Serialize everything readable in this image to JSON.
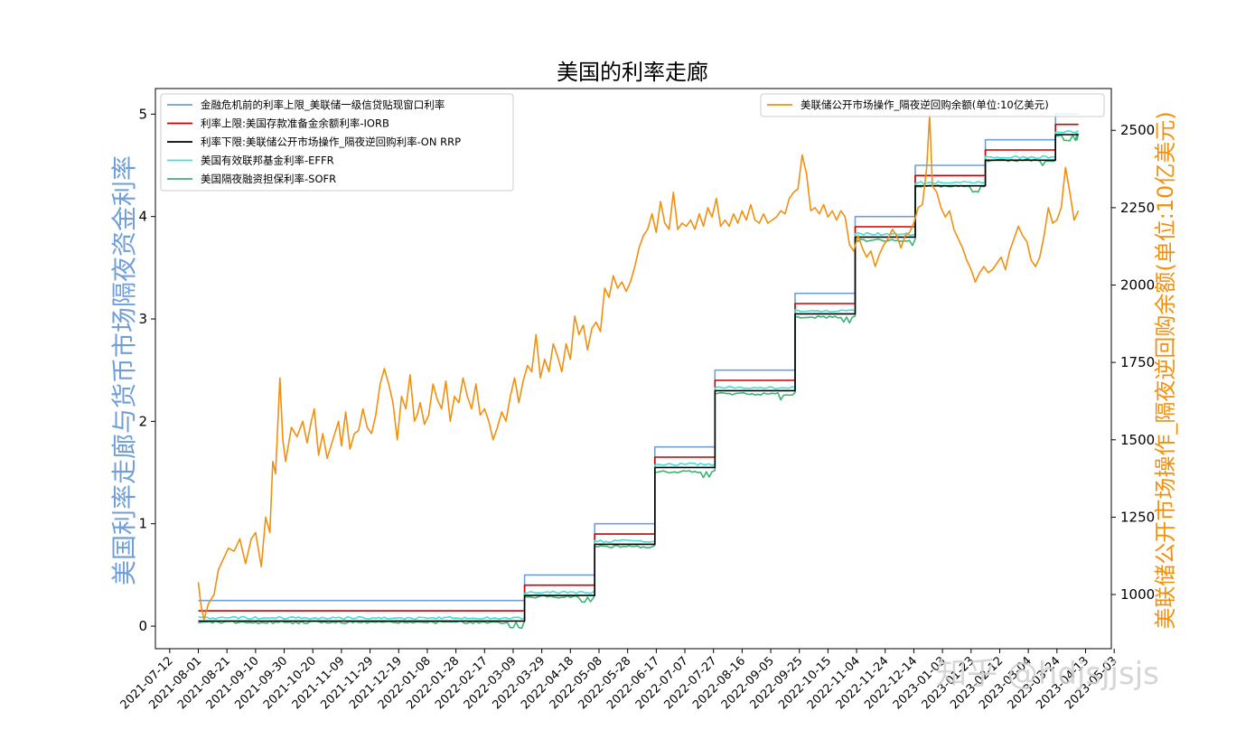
{
  "chart_data": {
    "type": "line",
    "title": "美国的利率走廊",
    "ylabel_left": "美国利率走廊与货币市场隔夜资金利率",
    "ylabel_right": "美联储公开市场操作_隔夜逆回购余额(单位:10亿美元)",
    "xlim": [
      "2021-07-02",
      "2023-05-01"
    ],
    "ylim_left": [
      -0.22,
      5.25
    ],
    "ylim_right": [
      825,
      2635
    ],
    "x_ticks": [
      "2021-07-12",
      "2021-08-01",
      "2021-08-21",
      "2021-09-10",
      "2021-09-30",
      "2021-10-20",
      "2021-11-09",
      "2021-11-29",
      "2021-12-19",
      "2022-01-08",
      "2022-01-28",
      "2022-02-17",
      "2022-03-09",
      "2022-03-29",
      "2022-04-18",
      "2022-05-08",
      "2022-05-28",
      "2022-06-17",
      "2022-07-07",
      "2022-07-27",
      "2022-08-16",
      "2022-09-05",
      "2022-09-25",
      "2022-10-15",
      "2022-11-04",
      "2022-11-24",
      "2022-12-14",
      "2023-01-03",
      "2023-01-23",
      "2023-02-12",
      "2023-03-04",
      "2023-03-24",
      "2023-04-13",
      "2023-05-03"
    ],
    "y_ticks_left": [
      0,
      1,
      2,
      3,
      4,
      5
    ],
    "y_ticks_right": [
      1000,
      1250,
      1500,
      1750,
      2000,
      2250,
      2500
    ],
    "legend_left": "upper-left",
    "legend_right": "upper-right",
    "grid": false,
    "step_dates": [
      "2021-08-01",
      "2022-03-17",
      "2022-05-05",
      "2022-06-16",
      "2022-07-28",
      "2022-09-22",
      "2022-11-03",
      "2022-12-15",
      "2023-02-02",
      "2023-03-23",
      "2023-04-07"
    ],
    "series": [
      {
        "name": "金融危机前的利率上限_美联储一级信贷贴现窗口利率",
        "color": "#6f9ed8",
        "axis": "left",
        "values": [
          0.25,
          0.5,
          1.0,
          1.75,
          2.5,
          3.25,
          4.0,
          4.5,
          4.75,
          5.0,
          5.0
        ]
      },
      {
        "name": "利率上限:美国存款准备金余额利率-IORB",
        "color": "#cc0000",
        "axis": "left",
        "values": [
          0.15,
          0.4,
          0.9,
          1.65,
          2.4,
          3.15,
          3.9,
          4.4,
          4.65,
          4.9,
          4.9
        ]
      },
      {
        "name": "利率下限:美联储公开市场操作_隔夜逆回购利率-ON RRP",
        "color": "#000000",
        "axis": "left",
        "values": [
          0.05,
          0.3,
          0.8,
          1.55,
          2.3,
          3.05,
          3.8,
          4.3,
          4.55,
          4.8,
          4.8
        ]
      },
      {
        "name": "美国有效联邦基金利率-EFFR",
        "color": "#40e0d8",
        "axis": "left",
        "values": [
          0.08,
          0.33,
          0.83,
          1.58,
          2.33,
          3.08,
          3.83,
          4.33,
          4.58,
          4.83,
          4.83
        ]
      },
      {
        "name": "美国隔夜融资担保利率-SOFR",
        "color": "#3cb371",
        "axis": "left",
        "values": [
          0.05,
          0.3,
          0.79,
          1.52,
          2.28,
          3.03,
          3.78,
          4.31,
          4.56,
          4.81,
          4.81
        ]
      },
      {
        "name": "美联储公开市场操作_隔夜逆回购余额(单位:10亿美元)",
        "color": "#f0900e",
        "axis": "right",
        "points": [
          [
            "2021-08-01",
            1040
          ],
          [
            "2021-08-03",
            960
          ],
          [
            "2021-08-05",
            920
          ],
          [
            "2021-08-08",
            970
          ],
          [
            "2021-08-12",
            1000
          ],
          [
            "2021-08-15",
            1080
          ],
          [
            "2021-08-18",
            1110
          ],
          [
            "2021-08-22",
            1150
          ],
          [
            "2021-08-26",
            1140
          ],
          [
            "2021-08-30",
            1180
          ],
          [
            "2021-09-03",
            1100
          ],
          [
            "2021-09-07",
            1180
          ],
          [
            "2021-09-10",
            1200
          ],
          [
            "2021-09-14",
            1090
          ],
          [
            "2021-09-17",
            1250
          ],
          [
            "2021-09-20",
            1200
          ],
          [
            "2021-09-22",
            1430
          ],
          [
            "2021-09-24",
            1390
          ],
          [
            "2021-09-27",
            1700
          ],
          [
            "2021-09-29",
            1500
          ],
          [
            "2021-10-01",
            1430
          ],
          [
            "2021-10-05",
            1540
          ],
          [
            "2021-10-09",
            1510
          ],
          [
            "2021-10-13",
            1560
          ],
          [
            "2021-10-16",
            1490
          ],
          [
            "2021-10-19",
            1560
          ],
          [
            "2021-10-21",
            1600
          ],
          [
            "2021-10-24",
            1450
          ],
          [
            "2021-10-27",
            1520
          ],
          [
            "2021-10-30",
            1440
          ],
          [
            "2021-11-03",
            1500
          ],
          [
            "2021-11-07",
            1560
          ],
          [
            "2021-11-09",
            1480
          ],
          [
            "2021-11-12",
            1590
          ],
          [
            "2021-11-15",
            1470
          ],
          [
            "2021-11-18",
            1520
          ],
          [
            "2021-11-21",
            1530
          ],
          [
            "2021-11-24",
            1600
          ],
          [
            "2021-11-27",
            1540
          ],
          [
            "2021-11-30",
            1520
          ],
          [
            "2021-12-03",
            1580
          ],
          [
            "2021-12-06",
            1680
          ],
          [
            "2021-12-09",
            1730
          ],
          [
            "2021-12-12",
            1680
          ],
          [
            "2021-12-15",
            1620
          ],
          [
            "2021-12-18",
            1500
          ],
          [
            "2021-12-21",
            1640
          ],
          [
            "2021-12-24",
            1600
          ],
          [
            "2021-12-27",
            1710
          ],
          [
            "2021-12-30",
            1560
          ],
          [
            "2022-01-01",
            1580
          ],
          [
            "2022-01-03",
            1620
          ],
          [
            "2022-01-06",
            1550
          ],
          [
            "2022-01-09",
            1580
          ],
          [
            "2022-01-12",
            1680
          ],
          [
            "2022-01-15",
            1630
          ],
          [
            "2022-01-18",
            1600
          ],
          [
            "2022-01-21",
            1690
          ],
          [
            "2022-01-24",
            1560
          ],
          [
            "2022-01-27",
            1640
          ],
          [
            "2022-01-30",
            1620
          ],
          [
            "2022-02-02",
            1700
          ],
          [
            "2022-02-05",
            1640
          ],
          [
            "2022-02-08",
            1600
          ],
          [
            "2022-02-11",
            1680
          ],
          [
            "2022-02-14",
            1580
          ],
          [
            "2022-02-17",
            1600
          ],
          [
            "2022-02-20",
            1560
          ],
          [
            "2022-02-23",
            1500
          ],
          [
            "2022-02-26",
            1540
          ],
          [
            "2022-03-01",
            1590
          ],
          [
            "2022-03-04",
            1560
          ],
          [
            "2022-03-07",
            1640
          ],
          [
            "2022-03-10",
            1700
          ],
          [
            "2022-03-13",
            1620
          ],
          [
            "2022-03-16",
            1690
          ],
          [
            "2022-03-19",
            1740
          ],
          [
            "2022-03-22",
            1720
          ],
          [
            "2022-03-25",
            1840
          ],
          [
            "2022-03-28",
            1700
          ],
          [
            "2022-03-31",
            1760
          ],
          [
            "2022-04-03",
            1720
          ],
          [
            "2022-04-06",
            1810
          ],
          [
            "2022-04-09",
            1770
          ],
          [
            "2022-04-12",
            1720
          ],
          [
            "2022-04-15",
            1810
          ],
          [
            "2022-04-18",
            1760
          ],
          [
            "2022-04-21",
            1900
          ],
          [
            "2022-04-24",
            1840
          ],
          [
            "2022-04-27",
            1870
          ],
          [
            "2022-04-30",
            1790
          ],
          [
            "2022-05-03",
            1860
          ],
          [
            "2022-05-06",
            1880
          ],
          [
            "2022-05-09",
            1850
          ],
          [
            "2022-05-12",
            1990
          ],
          [
            "2022-05-15",
            1960
          ],
          [
            "2022-05-18",
            2030
          ],
          [
            "2022-05-21",
            1990
          ],
          [
            "2022-05-24",
            2010
          ],
          [
            "2022-05-27",
            1980
          ],
          [
            "2022-05-30",
            2010
          ],
          [
            "2022-06-02",
            2060
          ],
          [
            "2022-06-05",
            2120
          ],
          [
            "2022-06-08",
            2160
          ],
          [
            "2022-06-11",
            2180
          ],
          [
            "2022-06-14",
            2230
          ],
          [
            "2022-06-17",
            2170
          ],
          [
            "2022-06-20",
            2270
          ],
          [
            "2022-06-23",
            2200
          ],
          [
            "2022-06-26",
            2180
          ],
          [
            "2022-06-29",
            2300
          ],
          [
            "2022-07-02",
            2180
          ],
          [
            "2022-07-05",
            2200
          ],
          [
            "2022-07-08",
            2190
          ],
          [
            "2022-07-11",
            2210
          ],
          [
            "2022-07-14",
            2180
          ],
          [
            "2022-07-17",
            2230
          ],
          [
            "2022-07-20",
            2190
          ],
          [
            "2022-07-23",
            2250
          ],
          [
            "2022-07-26",
            2220
          ],
          [
            "2022-07-29",
            2280
          ],
          [
            "2022-08-01",
            2190
          ],
          [
            "2022-08-04",
            2210
          ],
          [
            "2022-08-07",
            2190
          ],
          [
            "2022-08-10",
            2230
          ],
          [
            "2022-08-13",
            2200
          ],
          [
            "2022-08-16",
            2240
          ],
          [
            "2022-08-19",
            2210
          ],
          [
            "2022-08-22",
            2260
          ],
          [
            "2022-08-25",
            2210
          ],
          [
            "2022-08-28",
            2200
          ],
          [
            "2022-08-31",
            2230
          ],
          [
            "2022-09-03",
            2200
          ],
          [
            "2022-09-06",
            2210
          ],
          [
            "2022-09-09",
            2220
          ],
          [
            "2022-09-12",
            2240
          ],
          [
            "2022-09-15",
            2230
          ],
          [
            "2022-09-18",
            2280
          ],
          [
            "2022-09-21",
            2300
          ],
          [
            "2022-09-24",
            2310
          ],
          [
            "2022-09-27",
            2420
          ],
          [
            "2022-09-30",
            2360
          ],
          [
            "2022-10-03",
            2240
          ],
          [
            "2022-10-06",
            2250
          ],
          [
            "2022-10-09",
            2230
          ],
          [
            "2022-10-12",
            2260
          ],
          [
            "2022-10-15",
            2220
          ],
          [
            "2022-10-18",
            2240
          ],
          [
            "2022-10-21",
            2210
          ],
          [
            "2022-10-24",
            2240
          ],
          [
            "2022-10-27",
            2220
          ],
          [
            "2022-10-30",
            2130
          ],
          [
            "2022-11-02",
            2110
          ],
          [
            "2022-11-05",
            2160
          ],
          [
            "2022-11-08",
            2120
          ],
          [
            "2022-11-11",
            2090
          ],
          [
            "2022-11-14",
            2110
          ],
          [
            "2022-11-17",
            2060
          ],
          [
            "2022-11-20",
            2100
          ],
          [
            "2022-11-23",
            2130
          ],
          [
            "2022-11-26",
            2150
          ],
          [
            "2022-11-29",
            2180
          ],
          [
            "2022-12-02",
            2160
          ],
          [
            "2022-12-05",
            2120
          ],
          [
            "2022-12-08",
            2160
          ],
          [
            "2022-12-11",
            2170
          ],
          [
            "2022-12-14",
            2200
          ],
          [
            "2022-12-17",
            2250
          ],
          [
            "2022-12-20",
            2260
          ],
          [
            "2022-12-23",
            2380
          ],
          [
            "2022-12-25",
            2550
          ],
          [
            "2022-12-27",
            2320
          ],
          [
            "2022-12-30",
            2300
          ],
          [
            "2023-01-02",
            2250
          ],
          [
            "2023-01-05",
            2220
          ],
          [
            "2023-01-08",
            2240
          ],
          [
            "2023-01-11",
            2180
          ],
          [
            "2023-01-14",
            2150
          ],
          [
            "2023-01-17",
            2120
          ],
          [
            "2023-01-20",
            2080
          ],
          [
            "2023-01-23",
            2050
          ],
          [
            "2023-01-26",
            2010
          ],
          [
            "2023-01-29",
            2040
          ],
          [
            "2023-02-01",
            2060
          ],
          [
            "2023-02-04",
            2040
          ],
          [
            "2023-02-07",
            2050
          ],
          [
            "2023-02-10",
            2070
          ],
          [
            "2023-02-13",
            2090
          ],
          [
            "2023-02-16",
            2050
          ],
          [
            "2023-02-19",
            2110
          ],
          [
            "2023-02-22",
            2150
          ],
          [
            "2023-02-25",
            2190
          ],
          [
            "2023-02-28",
            2160
          ],
          [
            "2023-03-03",
            2140
          ],
          [
            "2023-03-06",
            2080
          ],
          [
            "2023-03-09",
            2060
          ],
          [
            "2023-03-12",
            2090
          ],
          [
            "2023-03-15",
            2160
          ],
          [
            "2023-03-18",
            2250
          ],
          [
            "2023-03-21",
            2200
          ],
          [
            "2023-03-24",
            2210
          ],
          [
            "2023-03-27",
            2250
          ],
          [
            "2023-03-30",
            2380
          ],
          [
            "2023-04-02",
            2300
          ],
          [
            "2023-04-05",
            2210
          ],
          [
            "2023-04-08",
            2240
          ]
        ]
      }
    ]
  },
  "watermark": "知乎 @hdjsjjsjs"
}
